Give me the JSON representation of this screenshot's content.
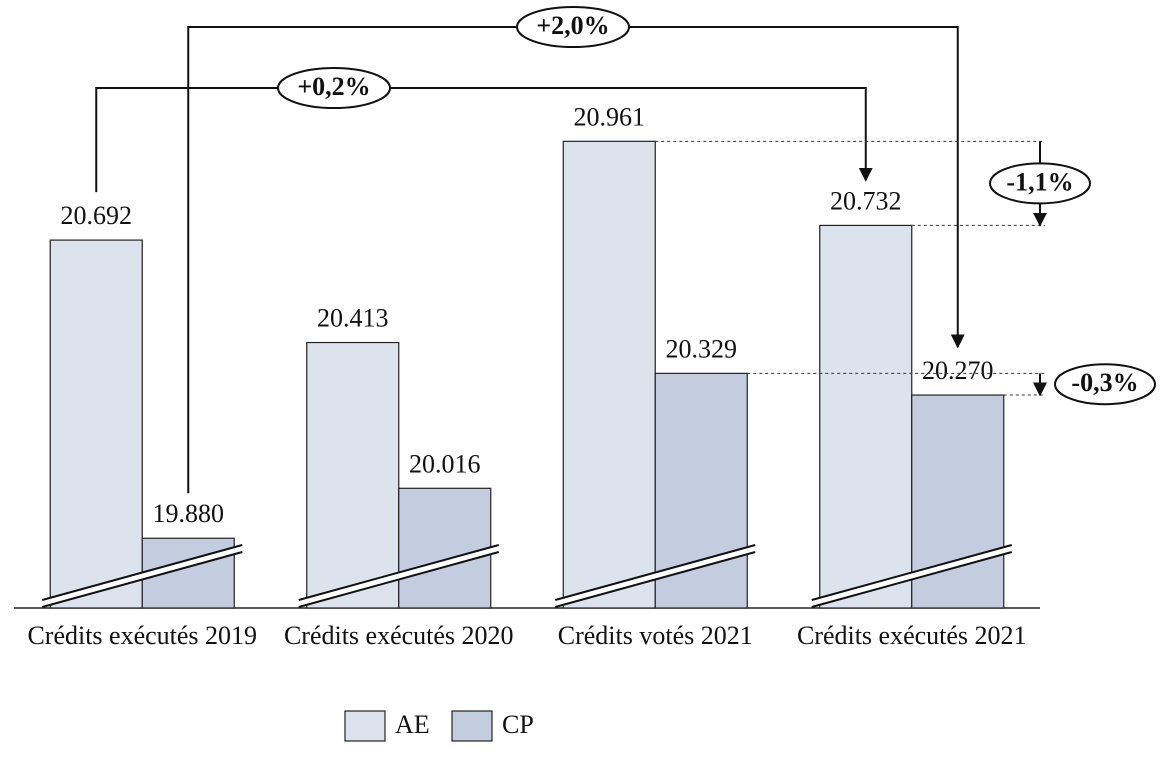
{
  "chart_data": {
    "type": "bar",
    "categories": [
      "Crédits exécutés 2019",
      "Crédits exécutés 2020",
      "Crédits votés 2021",
      "Crédits exécutés 2021"
    ],
    "series": [
      {
        "name": "AE",
        "color": "#dce3ed",
        "values": [
          20692,
          20413,
          20961,
          20732
        ],
        "value_labels": [
          "20.692",
          "20.413",
          "20.961",
          "20.732"
        ]
      },
      {
        "name": "CP",
        "color": "#c3cddf",
        "values": [
          19880,
          20016,
          20329,
          20270
        ],
        "value_labels": [
          "19.880",
          "20.016",
          "20.329",
          "20.270"
        ]
      }
    ],
    "ylim": [
      19690,
      21000
    ],
    "annotations": [
      "+2,0%",
      "+0,2%",
      "-1,1%",
      "-0,3%"
    ]
  }
}
